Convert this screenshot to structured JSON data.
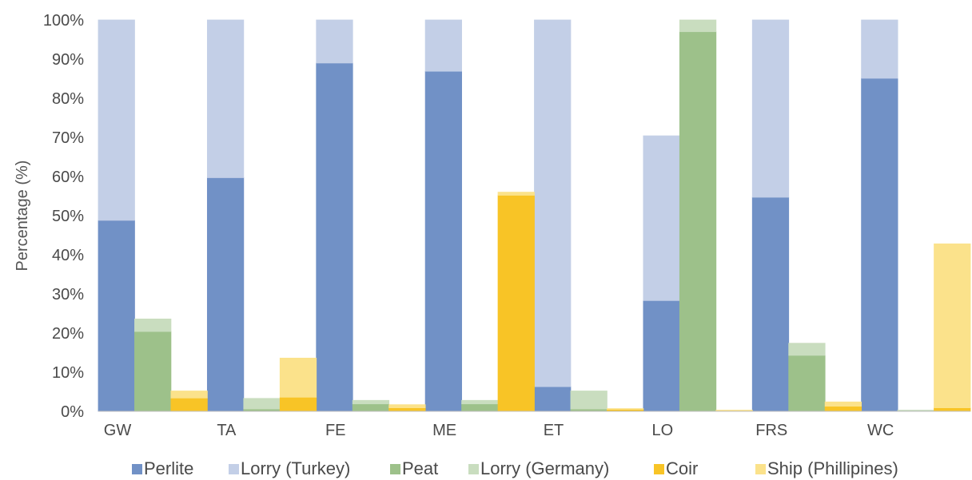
{
  "chart_data": {
    "type": "bar",
    "stacked": true,
    "title": "",
    "xlabel": "",
    "ylabel": "Percentage (%)",
    "ylim": [
      0,
      100
    ],
    "y_ticks": [
      "0%",
      "10%",
      "20%",
      "30%",
      "40%",
      "50%",
      "60%",
      "70%",
      "80%",
      "90%",
      "100%"
    ],
    "grid": false,
    "legend_position": "bottom",
    "categories": [
      "GW",
      "TA",
      "FE",
      "ME",
      "ET",
      "LO",
      "FRS",
      "WC"
    ],
    "stacks": [
      {
        "group": "Perlite",
        "series": [
          {
            "name": "Perlite",
            "color": "#7191c6",
            "values": [
              48.8,
              59.7,
              89,
              86.9,
              6.3,
              28.3,
              54.7,
              85.1
            ]
          },
          {
            "name": "Lorry (Turkey)",
            "color": "#c3cfe7",
            "values": [
              51.2,
              40.3,
              11,
              13.1,
              93.7,
              42.1,
              45.3,
              14.9
            ]
          }
        ]
      },
      {
        "group": "Peat",
        "series": [
          {
            "name": "Peat",
            "color": "#9dc18a",
            "values": [
              20.4,
              0.6,
              1.9,
              1.9,
              0.6,
              97,
              14.3,
              0.2
            ]
          },
          {
            "name": "Lorry (Germany)",
            "color": "#c9ddbf",
            "values": [
              3.2,
              2.7,
              0.9,
              0.9,
              4.6,
              3,
              3.1,
              0.1
            ]
          }
        ]
      },
      {
        "group": "Coir",
        "series": [
          {
            "name": "Coir",
            "color": "#f8c426",
            "values": [
              3.4,
              3.6,
              0.9,
              55.2,
              0.5,
              0.2,
              1.3,
              0.9
            ]
          },
          {
            "name": "Ship (Phillipines)",
            "color": "#fbe28b",
            "values": [
              1.8,
              10,
              0.8,
              0.8,
              0.2,
              0.1,
              1.1,
              41.9
            ]
          }
        ]
      }
    ]
  }
}
